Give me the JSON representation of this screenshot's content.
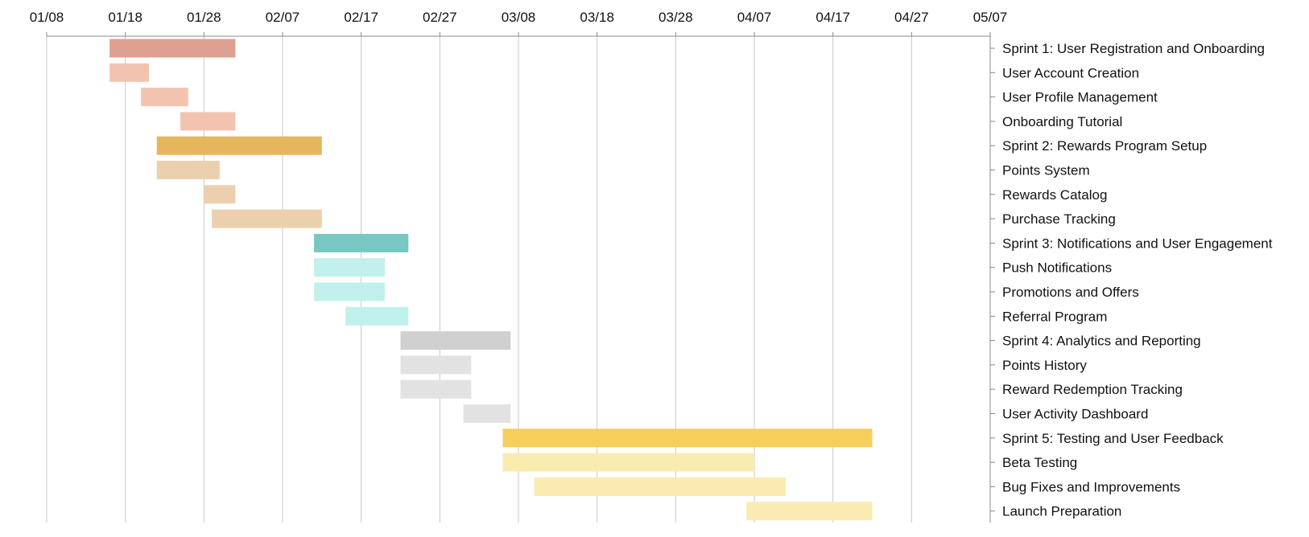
{
  "chart_data": {
    "type": "gantt",
    "title": "",
    "x_axis_position": "top",
    "date_ticks": [
      "01/08",
      "01/18",
      "01/28",
      "02/07",
      "02/17",
      "02/27",
      "03/08",
      "03/18",
      "03/28",
      "04/07",
      "04/17",
      "04/27",
      "05/07"
    ],
    "x_range_days": [
      0,
      120
    ],
    "x_start_date": "01/08",
    "grid": true,
    "task_label_position": "right",
    "tasks": [
      {
        "label": "Sprint 1: User Registration and Onboarding",
        "start": 8,
        "end": 24,
        "level": "sprint",
        "color": "#dea090"
      },
      {
        "label": "User Account Creation",
        "start": 8,
        "end": 13,
        "level": "task",
        "color": "#f2c4b0"
      },
      {
        "label": "User Profile Management",
        "start": 12,
        "end": 18,
        "level": "task",
        "color": "#f2c4b0"
      },
      {
        "label": "Onboarding Tutorial",
        "start": 17,
        "end": 24,
        "level": "task",
        "color": "#f2c4b0"
      },
      {
        "label": "Sprint 2: Rewards Program Setup",
        "start": 14,
        "end": 35,
        "level": "sprint",
        "color": "#e6b65e"
      },
      {
        "label": "Points System",
        "start": 14,
        "end": 22,
        "level": "task",
        "color": "#ecd0ae"
      },
      {
        "label": "Rewards Catalog",
        "start": 20,
        "end": 24,
        "level": "task",
        "color": "#ecd0ae"
      },
      {
        "label": "Purchase Tracking",
        "start": 21,
        "end": 35,
        "level": "task",
        "color": "#ecd0ae"
      },
      {
        "label": "Sprint 3: Notifications and User Engagement",
        "start": 34,
        "end": 46,
        "level": "sprint",
        "color": "#76c8c0"
      },
      {
        "label": "Push Notifications",
        "start": 34,
        "end": 43,
        "level": "task",
        "color": "#c2f0ec"
      },
      {
        "label": "Promotions and Offers",
        "start": 34,
        "end": 43,
        "level": "task",
        "color": "#c2f0ec"
      },
      {
        "label": "Referral Program",
        "start": 38,
        "end": 46,
        "level": "task",
        "color": "#c2f0ec"
      },
      {
        "label": "Sprint 4: Analytics and Reporting",
        "start": 45,
        "end": 59,
        "level": "sprint",
        "color": "#d0d0d0"
      },
      {
        "label": "Points History",
        "start": 45,
        "end": 54,
        "level": "task",
        "color": "#e2e2e2"
      },
      {
        "label": "Reward Redemption Tracking",
        "start": 45,
        "end": 54,
        "level": "task",
        "color": "#e2e2e2"
      },
      {
        "label": "User Activity Dashboard",
        "start": 53,
        "end": 59,
        "level": "task",
        "color": "#e2e2e2"
      },
      {
        "label": "Sprint 5: Testing and User Feedback",
        "start": 58,
        "end": 105,
        "level": "sprint",
        "color": "#f5ce5c"
      },
      {
        "label": "Beta Testing",
        "start": 58,
        "end": 90,
        "level": "task",
        "color": "#faebb0"
      },
      {
        "label": "Bug Fixes and Improvements",
        "start": 62,
        "end": 94,
        "level": "task",
        "color": "#faebb0"
      },
      {
        "label": "Launch Preparation",
        "start": 89,
        "end": 105,
        "level": "task",
        "color": "#faebb0"
      }
    ]
  }
}
